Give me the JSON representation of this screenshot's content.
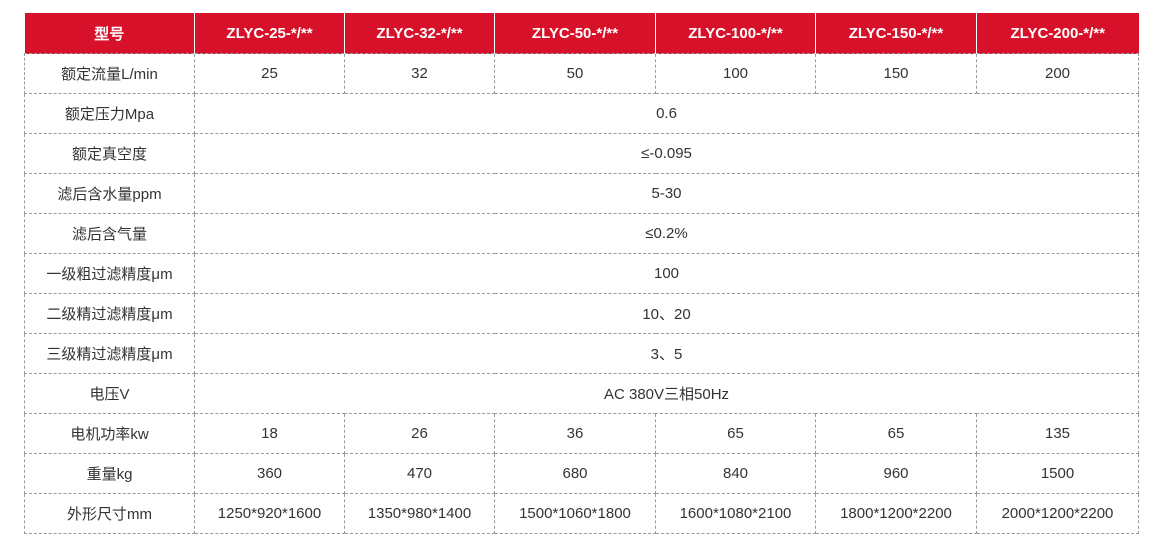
{
  "table": {
    "header": [
      "型号",
      "ZLYC-25-*/**",
      "ZLYC-32-*/**",
      "ZLYC-50-*/**",
      "ZLYC-100-*/**",
      "ZLYC-150-*/**",
      "ZLYC-200-*/**"
    ],
    "rows": [
      [
        "额定流量L/min",
        "25",
        "32",
        "50",
        "100",
        "150",
        "200"
      ],
      [
        "额定压力Mpa",
        "0.6"
      ],
      [
        "额定真空度",
        "≤-0.095"
      ],
      [
        "滤后含水量ppm",
        "5-30"
      ],
      [
        "滤后含气量",
        "≤0.2%"
      ],
      [
        "一级粗过滤精度μm",
        "100"
      ],
      [
        "二级精过滤精度μm",
        "10、20"
      ],
      [
        "三级精过滤精度μm",
        "3、5"
      ],
      [
        "电压V",
        "AC 380V三相50Hz"
      ],
      [
        "电机功率kw",
        "18",
        "26",
        "36",
        "65",
        "65",
        "135"
      ],
      [
        "重量kg",
        "360",
        "470",
        "680",
        "840",
        "960",
        "1500"
      ],
      [
        "外形尺寸mm",
        "1250*920*1600",
        "1350*980*1400",
        "1500*1060*1800",
        "1600*1080*2100",
        "1800*1200*2200",
        "2000*1200*2200"
      ]
    ]
  }
}
